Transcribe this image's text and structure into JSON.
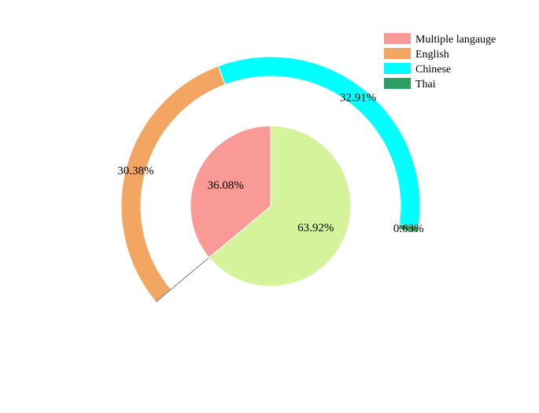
{
  "chart_data": {
    "type": "pie",
    "inner": {
      "slices": [
        {
          "value": 63.92,
          "label": "63.92%",
          "color": "#d4f39a"
        },
        {
          "value": 36.08,
          "label": "36.08%",
          "color": "#f99a96"
        }
      ]
    },
    "outer": {
      "slices": [
        {
          "name": "English",
          "value": 30.38,
          "label": "30.38%",
          "color": "#f2a662"
        },
        {
          "name": "Chinese",
          "value": 32.91,
          "label": "32.91%",
          "color": "#00ffff"
        },
        {
          "name": "Thai",
          "value": 0.63,
          "label": "0.63%",
          "color": "#2e9e62"
        }
      ]
    },
    "legend": {
      "position": "top-right",
      "entries": [
        {
          "name": "Multiple langauge",
          "color": "#f99a96"
        },
        {
          "name": "English",
          "color": "#f2a662"
        },
        {
          "name": "Chinese",
          "color": "#00ffff"
        },
        {
          "name": "Thai",
          "color": "#2e9e62"
        }
      ]
    }
  }
}
